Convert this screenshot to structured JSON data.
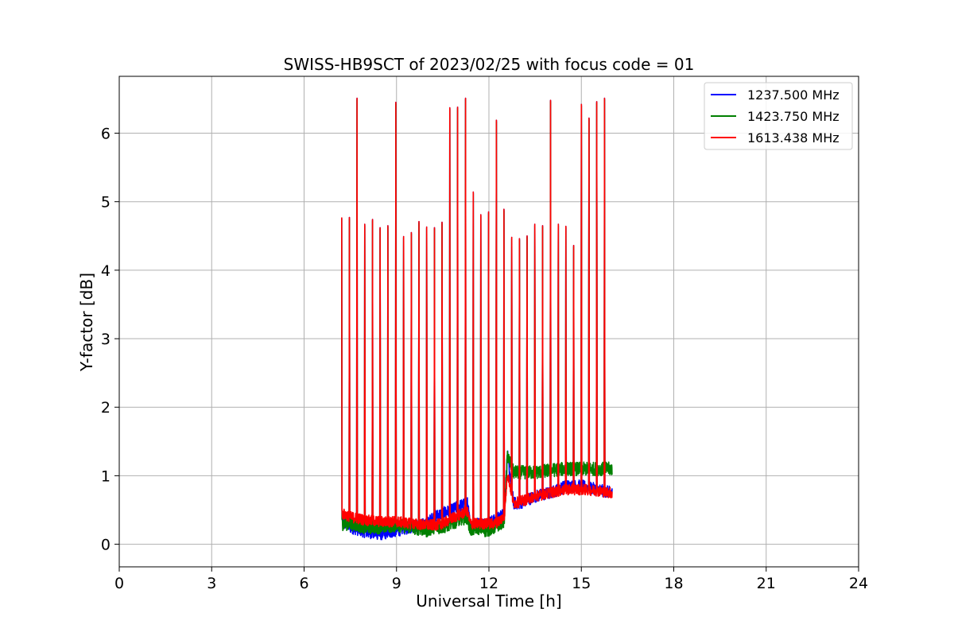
{
  "chart_data": {
    "type": "line",
    "title": "SWISS-HB9SCT of 2023/02/25 with focus code = 01",
    "xlabel": "Universal Time [h]",
    "ylabel": "Y-factor [dB]",
    "xlim": [
      0,
      24
    ],
    "ylim": [
      -0.33,
      6.83
    ],
    "xticks": [
      0,
      3,
      6,
      9,
      12,
      15,
      18,
      21,
      24
    ],
    "yticks": [
      0,
      1,
      2,
      3,
      4,
      5,
      6
    ],
    "grid": true,
    "legend_position": "top-right",
    "spike_times": [
      7.22,
      7.47,
      7.72,
      7.97,
      8.22,
      8.47,
      8.72,
      8.98,
      9.23,
      9.48,
      9.73,
      9.98,
      10.23,
      10.48,
      10.73,
      10.98,
      11.24,
      11.49,
      11.74,
      11.99,
      12.24,
      12.49,
      12.74,
      12.99,
      13.24,
      13.49,
      13.74,
      14.0,
      14.25,
      14.5,
      14.75,
      15.0,
      15.25,
      15.5,
      15.75
    ],
    "spike_peaks": [
      4.77,
      4.77,
      6.51,
      4.67,
      4.74,
      4.62,
      4.65,
      6.45,
      4.49,
      4.55,
      4.71,
      4.63,
      4.62,
      4.7,
      6.37,
      6.38,
      6.51,
      5.14,
      4.81,
      4.85,
      6.19,
      4.89,
      4.48,
      4.46,
      4.5,
      4.67,
      4.65,
      6.48,
      4.67,
      4.64,
      4.36,
      6.42,
      6.22,
      6.46,
      6.51
    ],
    "series": [
      {
        "name": "1237.500 MHz",
        "color": "#0000ff",
        "x": [
          7.22,
          7.5,
          8.0,
          8.5,
          9.0,
          9.5,
          10.0,
          10.2,
          10.5,
          10.8,
          11.0,
          11.3,
          11.4,
          11.6,
          11.9,
          12.2,
          12.5,
          12.6,
          12.8,
          13.0,
          13.5,
          14.0,
          14.5,
          15.0,
          15.5,
          16.0
        ],
        "y": [
          0.35,
          0.25,
          0.18,
          0.15,
          0.2,
          0.25,
          0.3,
          0.4,
          0.45,
          0.5,
          0.55,
          0.6,
          0.25,
          0.3,
          0.3,
          0.35,
          0.45,
          1.3,
          0.6,
          0.6,
          0.7,
          0.75,
          0.85,
          0.85,
          0.8,
          0.75
        ]
      },
      {
        "name": "1423.750 MHz",
        "color": "#008000",
        "x": [
          7.22,
          7.5,
          8.0,
          8.5,
          9.0,
          9.5,
          10.0,
          10.2,
          10.5,
          10.8,
          11.0,
          11.3,
          11.4,
          11.6,
          11.9,
          12.2,
          12.5,
          12.6,
          12.8,
          13.0,
          13.5,
          14.0,
          14.5,
          15.0,
          15.5,
          16.0
        ],
        "y": [
          0.3,
          0.3,
          0.25,
          0.25,
          0.28,
          0.25,
          0.2,
          0.25,
          0.25,
          0.3,
          0.35,
          0.4,
          0.2,
          0.25,
          0.2,
          0.25,
          0.35,
          1.3,
          1.05,
          1.05,
          1.05,
          1.08,
          1.1,
          1.1,
          1.1,
          1.1
        ]
      },
      {
        "name": "1613.438 MHz",
        "color": "#ff0000",
        "x": [
          7.22,
          7.5,
          8.0,
          8.5,
          9.0,
          9.5,
          10.0,
          10.2,
          10.5,
          10.8,
          11.0,
          11.3,
          11.4,
          11.6,
          11.9,
          12.2,
          12.5,
          12.6,
          12.8,
          13.0,
          13.5,
          14.0,
          14.5,
          15.0,
          15.5,
          16.0
        ],
        "y": [
          0.45,
          0.4,
          0.35,
          0.33,
          0.33,
          0.3,
          0.28,
          0.28,
          0.3,
          0.38,
          0.42,
          0.48,
          0.3,
          0.3,
          0.3,
          0.3,
          0.4,
          1.05,
          0.6,
          0.62,
          0.7,
          0.75,
          0.8,
          0.8,
          0.78,
          0.75
        ]
      }
    ]
  }
}
